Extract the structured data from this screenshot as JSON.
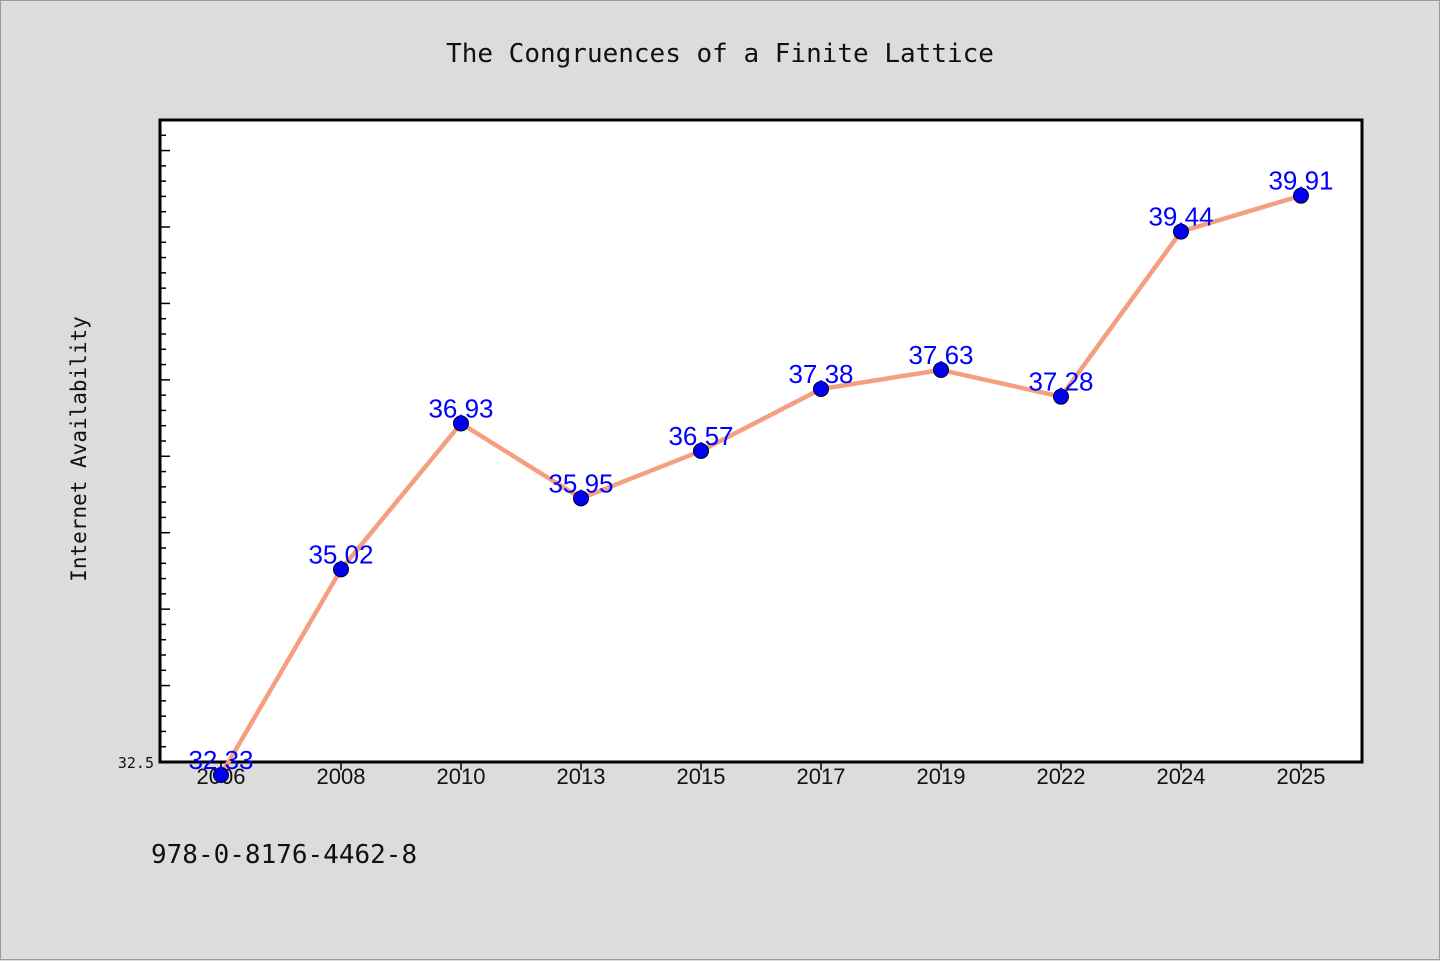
{
  "chart_data": {
    "type": "line",
    "title": "The Congruences of a Finite Lattice",
    "xlabel": "",
    "ylabel": "Internet Availability",
    "categories": [
      "2006",
      "2008",
      "2010",
      "2013",
      "2015",
      "2017",
      "2019",
      "2022",
      "2024",
      "2025"
    ],
    "series": [
      {
        "values": [
          32.33,
          35.02,
          36.93,
          35.95,
          36.57,
          37.38,
          37.63,
          37.28,
          39.44,
          39.91
        ],
        "labels": [
          "32.33",
          "35.02",
          "36.93",
          "35.95",
          "36.57",
          "37.38",
          "37.63",
          "37.28",
          "39.44",
          "39.91"
        ],
        "line_color": "#f4a080",
        "marker_color": "#0000ee"
      }
    ],
    "ylim": [
      32.5,
      40.9
    ],
    "yticks_labeled": [
      "32.5"
    ],
    "grid": false,
    "legend": "none",
    "label_color": "#0000ff"
  },
  "footer": {
    "isbn": "978-0-8176-4462-8"
  }
}
